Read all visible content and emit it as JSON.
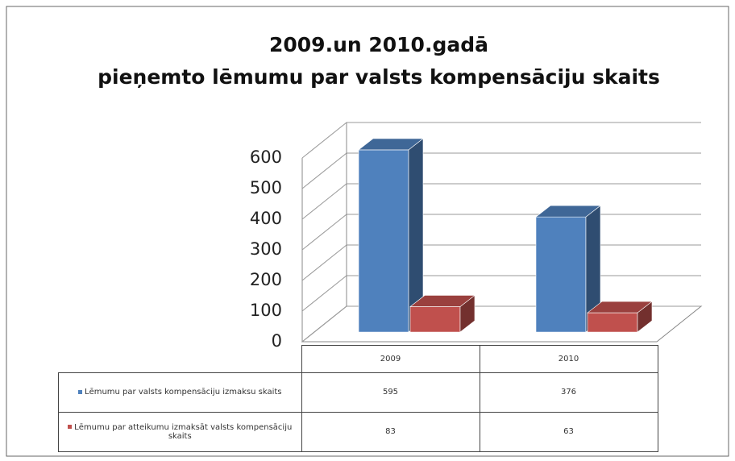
{
  "chart_data": {
    "type": "bar3d",
    "title": [
      "2009.un 2010.gadā",
      "pieņemto lēmumu par valsts kompensāciju skaits"
    ],
    "categories": [
      "2009",
      "2010"
    ],
    "series": [
      {
        "name": "Lēmumu par valsts kompensāciju izmaksu skaits",
        "color": "#4f81bd",
        "values": [
          595,
          376
        ]
      },
      {
        "name": "Lēmumu par atteikumu izmaksāt valsts kompensāciju skaits",
        "color": "#c0504d",
        "values": [
          83,
          63
        ]
      }
    ],
    "ylim": [
      0,
      600
    ],
    "yticks": [
      0,
      100,
      200,
      300,
      400,
      500,
      600
    ],
    "grid": true,
    "data_table": true
  }
}
